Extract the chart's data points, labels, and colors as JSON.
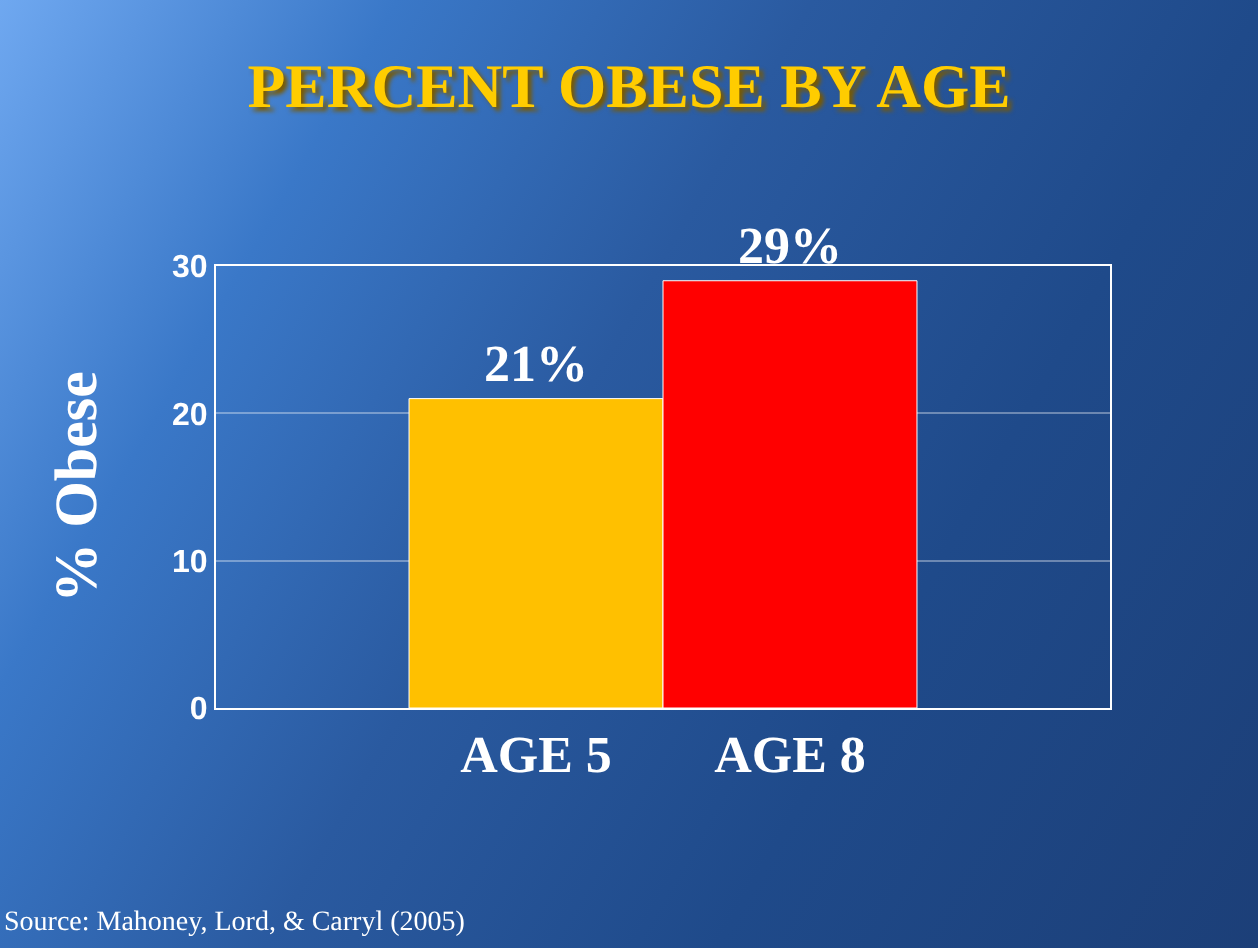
{
  "chart_data": {
    "type": "bar",
    "title": "PERCENT OBESE BY AGE",
    "ylabel": "% Obese",
    "categories": [
      "AGE 5",
      "AGE 8"
    ],
    "values": [
      21,
      29
    ],
    "colors": [
      "#ffc000",
      "#ff0000"
    ],
    "value_labels": [
      "21%",
      "29%"
    ],
    "ylim": [
      0,
      30
    ],
    "yticks": [
      0,
      10,
      20,
      30
    ],
    "grid": "y",
    "annotations": [
      "Source: Mahoney, Lord, & Carryl (2005)"
    ]
  }
}
